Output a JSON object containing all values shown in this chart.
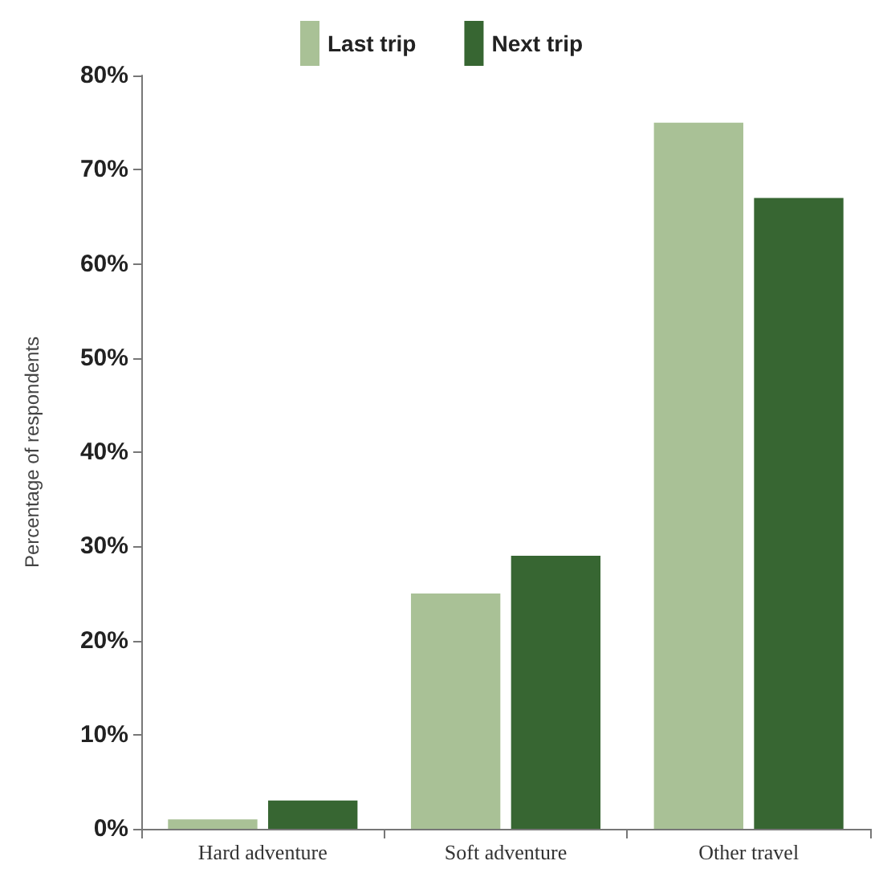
{
  "chart_data": {
    "type": "bar",
    "ylabel": "Percentage of respondents",
    "categories": [
      "Hard adventure",
      "Soft adventure",
      "Other travel"
    ],
    "series": [
      {
        "name": "Last trip",
        "color": "#a9c196",
        "values": [
          1,
          25,
          75
        ]
      },
      {
        "name": "Next trip",
        "color": "#376632",
        "values": [
          3,
          29,
          67
        ]
      }
    ],
    "ylim": [
      0,
      80
    ],
    "yticks": [
      {
        "value": 0,
        "label": "0%"
      },
      {
        "value": 10,
        "label": "10%"
      },
      {
        "value": 20,
        "label": "20%"
      },
      {
        "value": 30,
        "label": "30%"
      },
      {
        "value": 40,
        "label": "40%"
      },
      {
        "value": 50,
        "label": "50%"
      },
      {
        "value": 60,
        "label": "60%"
      },
      {
        "value": 70,
        "label": "70%"
      },
      {
        "value": 80,
        "label": "80%"
      }
    ],
    "grid": false,
    "legend": "top"
  }
}
